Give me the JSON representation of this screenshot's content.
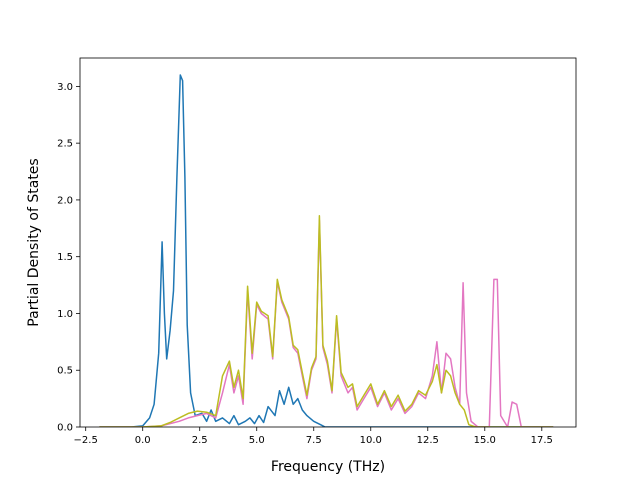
{
  "chart_data": {
    "type": "line",
    "title": "",
    "xlabel": "Frequency (THz)",
    "ylabel": "Partial Density of States",
    "xlim": [
      -2.75,
      19.0
    ],
    "ylim": [
      0.0,
      3.25
    ],
    "xticks": [
      -2.5,
      0.0,
      2.5,
      5.0,
      7.5,
      10.0,
      12.5,
      15.0,
      17.5
    ],
    "xtick_labels": [
      "−2.5",
      "0.0",
      "2.5",
      "5.0",
      "7.5",
      "10.0",
      "12.5",
      "15.0",
      "17.5"
    ],
    "yticks": [
      0.0,
      0.5,
      1.0,
      1.5,
      2.0,
      2.5,
      3.0
    ],
    "ytick_labels": [
      "0.0",
      "0.5",
      "1.0",
      "1.5",
      "2.0",
      "2.5",
      "3.0"
    ],
    "grid": false,
    "legend": "none",
    "series": [
      {
        "color": "#1f77b4",
        "points": [
          [
            -1.9,
            0
          ],
          [
            -0.5,
            0
          ],
          [
            0,
            0.01
          ],
          [
            0.3,
            0.08
          ],
          [
            0.5,
            0.2
          ],
          [
            0.7,
            0.65
          ],
          [
            0.85,
            1.63
          ],
          [
            0.95,
            1.0
          ],
          [
            1.05,
            0.6
          ],
          [
            1.2,
            0.85
          ],
          [
            1.35,
            1.2
          ],
          [
            1.5,
            2.2
          ],
          [
            1.65,
            3.1
          ],
          [
            1.75,
            3.05
          ],
          [
            1.85,
            2.2
          ],
          [
            1.95,
            0.9
          ],
          [
            2.1,
            0.3
          ],
          [
            2.3,
            0.1
          ],
          [
            2.6,
            0.12
          ],
          [
            2.8,
            0.05
          ],
          [
            3.0,
            0.15
          ],
          [
            3.2,
            0.05
          ],
          [
            3.5,
            0.08
          ],
          [
            3.8,
            0.03
          ],
          [
            4.0,
            0.1
          ],
          [
            4.2,
            0.02
          ],
          [
            4.5,
            0.05
          ],
          [
            4.7,
            0.08
          ],
          [
            4.9,
            0.03
          ],
          [
            5.1,
            0.1
          ],
          [
            5.3,
            0.04
          ],
          [
            5.5,
            0.18
          ],
          [
            5.8,
            0.1
          ],
          [
            6.0,
            0.32
          ],
          [
            6.2,
            0.2
          ],
          [
            6.4,
            0.35
          ],
          [
            6.6,
            0.2
          ],
          [
            6.8,
            0.25
          ],
          [
            7.0,
            0.15
          ],
          [
            7.2,
            0.1
          ],
          [
            7.5,
            0.05
          ],
          [
            7.8,
            0.02
          ],
          [
            8.0,
            0
          ],
          [
            18.0,
            0
          ]
        ]
      },
      {
        "color": "#e377c2",
        "points": [
          [
            -1.9,
            0
          ],
          [
            0,
            0
          ],
          [
            0.8,
            0.01
          ],
          [
            1.2,
            0.03
          ],
          [
            1.6,
            0.05
          ],
          [
            2.0,
            0.08
          ],
          [
            2.4,
            0.1
          ],
          [
            2.8,
            0.12
          ],
          [
            3.2,
            0.08
          ],
          [
            3.5,
            0.3
          ],
          [
            3.8,
            0.55
          ],
          [
            4.0,
            0.3
          ],
          [
            4.2,
            0.45
          ],
          [
            4.4,
            0.2
          ],
          [
            4.6,
            1.2
          ],
          [
            4.8,
            0.6
          ],
          [
            5.0,
            1.08
          ],
          [
            5.2,
            1.0
          ],
          [
            5.5,
            0.95
          ],
          [
            5.7,
            0.6
          ],
          [
            5.9,
            1.28
          ],
          [
            6.1,
            1.1
          ],
          [
            6.4,
            0.95
          ],
          [
            6.6,
            0.7
          ],
          [
            6.8,
            0.65
          ],
          [
            7.0,
            0.45
          ],
          [
            7.2,
            0.25
          ],
          [
            7.4,
            0.5
          ],
          [
            7.6,
            0.6
          ],
          [
            7.75,
            1.82
          ],
          [
            7.9,
            0.7
          ],
          [
            8.1,
            0.55
          ],
          [
            8.3,
            0.3
          ],
          [
            8.5,
            0.95
          ],
          [
            8.7,
            0.45
          ],
          [
            9.0,
            0.3
          ],
          [
            9.2,
            0.35
          ],
          [
            9.4,
            0.15
          ],
          [
            9.7,
            0.25
          ],
          [
            10.0,
            0.35
          ],
          [
            10.3,
            0.18
          ],
          [
            10.6,
            0.3
          ],
          [
            10.9,
            0.15
          ],
          [
            11.2,
            0.25
          ],
          [
            11.5,
            0.12
          ],
          [
            11.8,
            0.18
          ],
          [
            12.1,
            0.3
          ],
          [
            12.4,
            0.25
          ],
          [
            12.7,
            0.45
          ],
          [
            12.9,
            0.75
          ],
          [
            13.1,
            0.3
          ],
          [
            13.3,
            0.65
          ],
          [
            13.5,
            0.6
          ],
          [
            13.7,
            0.35
          ],
          [
            13.9,
            0.2
          ],
          [
            14.05,
            1.27
          ],
          [
            14.2,
            0.3
          ],
          [
            14.4,
            0.05
          ],
          [
            14.7,
            0
          ],
          [
            15.2,
            0
          ],
          [
            15.4,
            1.3
          ],
          [
            15.55,
            1.3
          ],
          [
            15.7,
            0.1
          ],
          [
            16.0,
            0
          ],
          [
            16.2,
            0.22
          ],
          [
            16.4,
            0.2
          ],
          [
            16.6,
            0
          ],
          [
            18.0,
            0
          ]
        ]
      },
      {
        "color": "#bcbd22",
        "points": [
          [
            -1.9,
            0
          ],
          [
            0,
            0
          ],
          [
            0.8,
            0.01
          ],
          [
            1.2,
            0.04
          ],
          [
            1.6,
            0.08
          ],
          [
            2.0,
            0.12
          ],
          [
            2.4,
            0.14
          ],
          [
            2.8,
            0.13
          ],
          [
            3.2,
            0.1
          ],
          [
            3.5,
            0.45
          ],
          [
            3.8,
            0.58
          ],
          [
            4.0,
            0.35
          ],
          [
            4.2,
            0.5
          ],
          [
            4.4,
            0.25
          ],
          [
            4.6,
            1.24
          ],
          [
            4.8,
            0.65
          ],
          [
            5.0,
            1.1
          ],
          [
            5.2,
            1.02
          ],
          [
            5.5,
            0.98
          ],
          [
            5.7,
            0.62
          ],
          [
            5.9,
            1.3
          ],
          [
            6.1,
            1.12
          ],
          [
            6.4,
            0.97
          ],
          [
            6.6,
            0.72
          ],
          [
            6.8,
            0.68
          ],
          [
            7.0,
            0.48
          ],
          [
            7.2,
            0.28
          ],
          [
            7.4,
            0.52
          ],
          [
            7.6,
            0.62
          ],
          [
            7.75,
            1.86
          ],
          [
            7.9,
            0.72
          ],
          [
            8.1,
            0.58
          ],
          [
            8.3,
            0.32
          ],
          [
            8.5,
            0.98
          ],
          [
            8.7,
            0.48
          ],
          [
            9.0,
            0.35
          ],
          [
            9.2,
            0.38
          ],
          [
            9.4,
            0.18
          ],
          [
            9.7,
            0.28
          ],
          [
            10.0,
            0.38
          ],
          [
            10.3,
            0.2
          ],
          [
            10.6,
            0.32
          ],
          [
            10.9,
            0.18
          ],
          [
            11.2,
            0.28
          ],
          [
            11.5,
            0.14
          ],
          [
            11.8,
            0.2
          ],
          [
            12.1,
            0.32
          ],
          [
            12.4,
            0.28
          ],
          [
            12.7,
            0.4
          ],
          [
            12.9,
            0.55
          ],
          [
            13.1,
            0.3
          ],
          [
            13.3,
            0.5
          ],
          [
            13.5,
            0.45
          ],
          [
            13.7,
            0.3
          ],
          [
            13.9,
            0.2
          ],
          [
            14.1,
            0.15
          ],
          [
            14.3,
            0.02
          ],
          [
            14.6,
            0
          ],
          [
            18.0,
            0
          ]
        ]
      }
    ]
  }
}
